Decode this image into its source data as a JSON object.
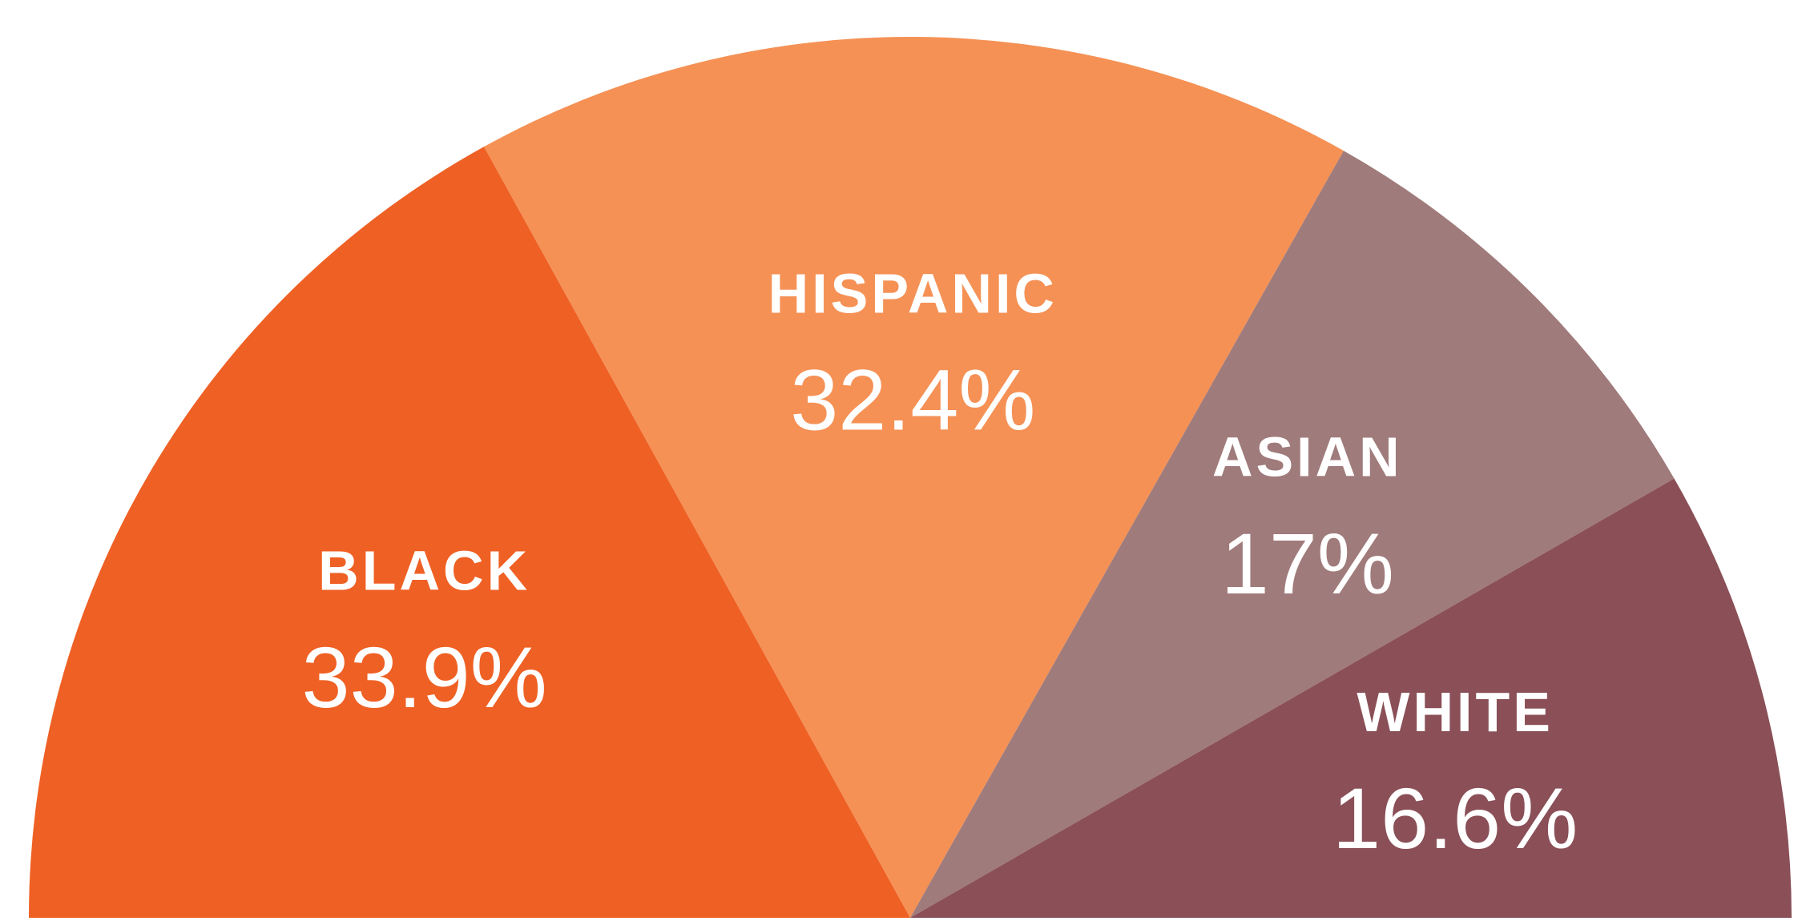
{
  "chart_data": {
    "type": "pie",
    "categories": [
      "BLACK",
      "HISPANIC",
      "ASIAN",
      "WHITE"
    ],
    "values": [
      33.9,
      32.4,
      17,
      16.6
    ],
    "value_labels": [
      "33.9%",
      "32.4%",
      "17%",
      "16.6%"
    ],
    "colors": [
      "#ef6024",
      "#f59155",
      "#a07b7b",
      "#8a4f57"
    ]
  }
}
